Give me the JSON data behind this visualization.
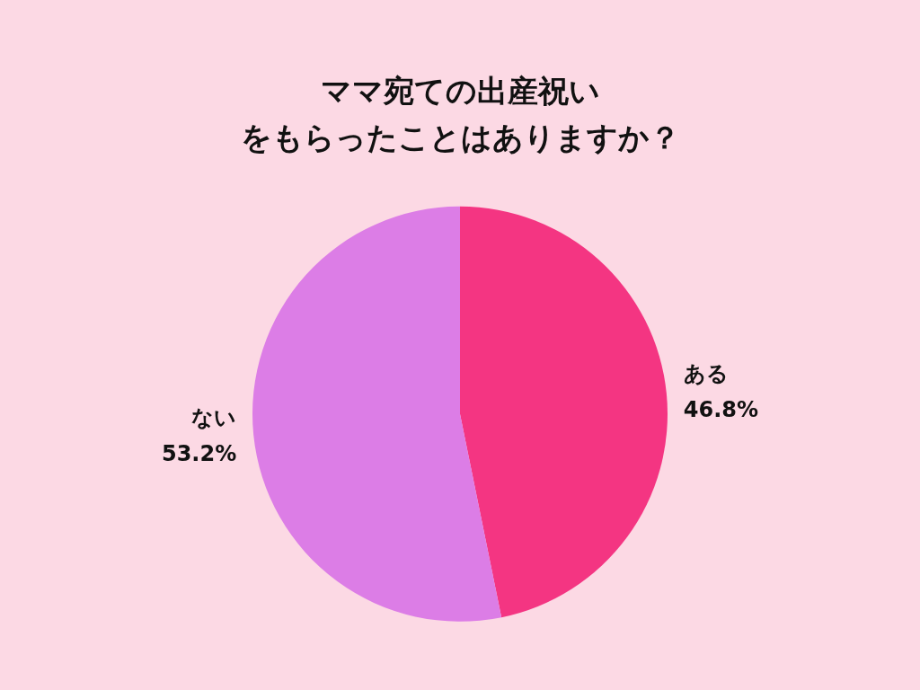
{
  "chart_data": {
    "type": "pie",
    "title": "ママ宛ての出産祝いをもらったことはありますか？",
    "categories": [
      "ある",
      "ない"
    ],
    "values": [
      46.8,
      53.2
    ],
    "value_labels": [
      "46.8%",
      "53.2%"
    ],
    "colors": [
      "#f43582",
      "#dc7de6"
    ],
    "legend": false
  }
}
